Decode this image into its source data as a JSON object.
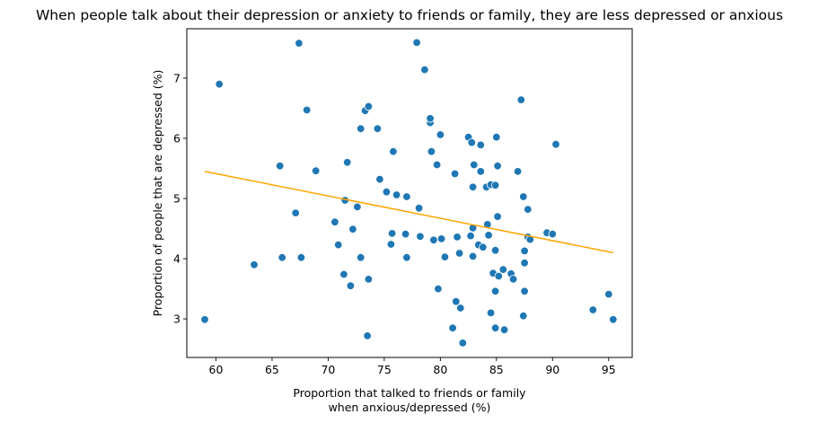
{
  "chart_data": {
    "type": "scatter",
    "title": "When people talk about their depression or anxiety to friends or family, they are less depressed or anxious",
    "xlabel_lines": [
      "Proportion that talked to friends or family",
      "when anxious/depressed (%)"
    ],
    "ylabel": "Proportion of people that are depressed (%)",
    "xlim": [
      57.4,
      97.1
    ],
    "ylim": [
      2.36,
      7.82
    ],
    "xticks": [
      60,
      65,
      70,
      75,
      80,
      85,
      90,
      95
    ],
    "yticks": [
      3,
      4,
      5,
      6,
      7
    ],
    "grid": false,
    "point_color": "#1f77b4",
    "line_color": "#ffa500",
    "trendline": {
      "x": [
        59.0,
        95.4
      ],
      "y": [
        5.45,
        4.1
      ]
    },
    "points": [
      [
        59.0,
        2.99
      ],
      [
        60.3,
        6.9
      ],
      [
        63.4,
        3.9
      ],
      [
        65.7,
        5.54
      ],
      [
        65.9,
        4.02
      ],
      [
        67.1,
        4.76
      ],
      [
        67.4,
        7.58
      ],
      [
        67.6,
        4.02
      ],
      [
        68.1,
        6.47
      ],
      [
        68.9,
        5.46
      ],
      [
        70.6,
        4.61
      ],
      [
        70.9,
        4.23
      ],
      [
        71.4,
        3.74
      ],
      [
        71.5,
        4.97
      ],
      [
        71.7,
        5.6
      ],
      [
        72.0,
        3.55
      ],
      [
        72.2,
        4.49
      ],
      [
        72.6,
        4.86
      ],
      [
        72.9,
        6.16
      ],
      [
        72.9,
        4.02
      ],
      [
        73.3,
        6.46
      ],
      [
        73.5,
        2.72
      ],
      [
        73.6,
        6.53
      ],
      [
        73.6,
        3.66
      ],
      [
        74.4,
        6.16
      ],
      [
        74.6,
        5.32
      ],
      [
        75.2,
        5.11
      ],
      [
        75.6,
        4.24
      ],
      [
        75.7,
        4.42
      ],
      [
        75.8,
        5.78
      ],
      [
        76.1,
        5.06
      ],
      [
        76.9,
        4.41
      ],
      [
        77.0,
        5.03
      ],
      [
        77.0,
        4.02
      ],
      [
        77.9,
        7.59
      ],
      [
        78.1,
        4.84
      ],
      [
        78.2,
        4.37
      ],
      [
        78.6,
        7.14
      ],
      [
        79.1,
        6.26
      ],
      [
        79.1,
        6.33
      ],
      [
        79.2,
        5.78
      ],
      [
        79.4,
        4.31
      ],
      [
        79.7,
        5.56
      ],
      [
        79.8,
        3.5
      ],
      [
        80.0,
        6.06
      ],
      [
        80.1,
        4.33
      ],
      [
        80.4,
        4.03
      ],
      [
        81.1,
        2.85
      ],
      [
        81.3,
        5.41
      ],
      [
        81.4,
        3.29
      ],
      [
        81.5,
        4.36
      ],
      [
        81.7,
        4.09
      ],
      [
        81.8,
        3.18
      ],
      [
        82.0,
        2.6
      ],
      [
        82.5,
        6.02
      ],
      [
        82.7,
        4.38
      ],
      [
        82.8,
        5.93
      ],
      [
        82.9,
        5.19
      ],
      [
        82.9,
        4.51
      ],
      [
        82.9,
        4.04
      ],
      [
        83.0,
        5.56
      ],
      [
        83.4,
        4.23
      ],
      [
        83.6,
        5.89
      ],
      [
        83.6,
        5.45
      ],
      [
        83.8,
        4.19
      ],
      [
        84.1,
        5.19
      ],
      [
        84.2,
        4.57
      ],
      [
        84.3,
        4.39
      ],
      [
        84.5,
        5.23
      ],
      [
        84.5,
        3.1
      ],
      [
        84.7,
        3.76
      ],
      [
        84.9,
        5.22
      ],
      [
        84.9,
        4.14
      ],
      [
        84.9,
        3.46
      ],
      [
        84.9,
        2.85
      ],
      [
        85.0,
        6.02
      ],
      [
        85.1,
        5.54
      ],
      [
        85.1,
        4.7
      ],
      [
        85.2,
        3.71
      ],
      [
        85.6,
        3.82
      ],
      [
        85.7,
        2.82
      ],
      [
        86.3,
        3.75
      ],
      [
        86.5,
        3.66
      ],
      [
        86.9,
        5.45
      ],
      [
        87.2,
        6.64
      ],
      [
        87.4,
        5.03
      ],
      [
        87.4,
        3.05
      ],
      [
        87.5,
        4.13
      ],
      [
        87.5,
        3.93
      ],
      [
        87.5,
        3.46
      ],
      [
        87.8,
        4.82
      ],
      [
        87.8,
        4.36
      ],
      [
        88.0,
        4.32
      ],
      [
        89.5,
        4.43
      ],
      [
        90.0,
        4.41
      ],
      [
        90.3,
        5.9
      ],
      [
        93.6,
        3.15
      ],
      [
        95.0,
        3.41
      ],
      [
        95.4,
        2.99
      ]
    ]
  }
}
